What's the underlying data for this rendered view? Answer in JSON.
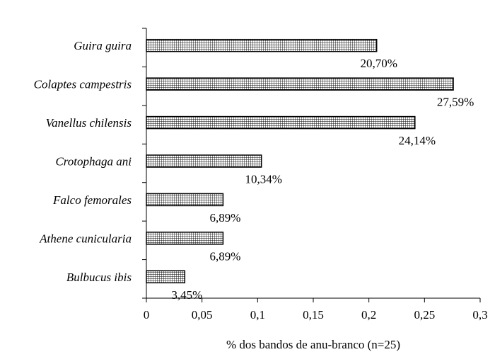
{
  "chart_data": {
    "type": "bar",
    "orientation": "horizontal",
    "categories": [
      "Guira guira",
      "Colaptes campestris",
      "Vanellus chilensis",
      "Crotophaga ani",
      "Falco femorales",
      "Athene cunicularia",
      "Bulbucus ibis"
    ],
    "values": [
      0.207,
      0.2759,
      0.2414,
      0.1034,
      0.0689,
      0.0689,
      0.0345
    ],
    "data_labels": [
      "20,70%",
      "27,59%",
      "24,14%",
      "10,34%",
      "6,89%",
      "6,89%",
      "3,45%"
    ],
    "title": "",
    "xlabel": "% dos bandos de anu-branco (n=25)",
    "ylabel": "",
    "xlim": [
      0,
      0.3
    ],
    "xticks": [
      0,
      0.05,
      0.1,
      0.15,
      0.2,
      0.25,
      0.3
    ],
    "xtick_labels": [
      "0",
      "0,05",
      "0,1",
      "0,15",
      "0,2",
      "0,25",
      "0,3"
    ],
    "grid": false,
    "legend": "none",
    "bar_fill": "crosshatch",
    "bar_color": "#000000"
  }
}
